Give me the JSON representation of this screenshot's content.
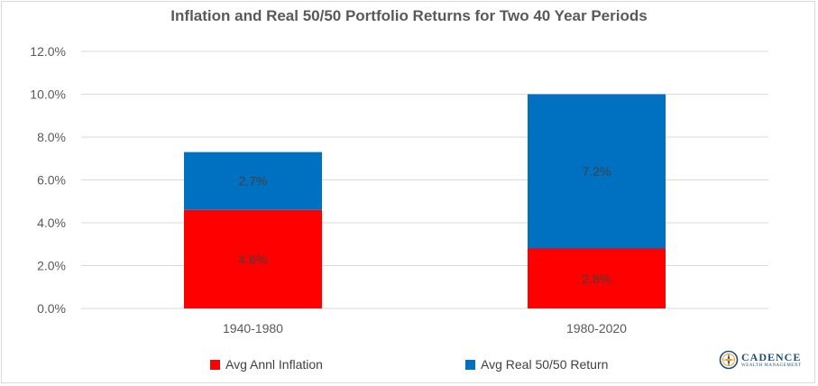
{
  "chart_data": {
    "type": "bar",
    "stacked": true,
    "title": "Inflation and Real 50/50 Portfolio Returns for Two 40 Year Periods",
    "categories": [
      "1940-1980",
      "1980-2020"
    ],
    "series": [
      {
        "name": "Avg Annl Inflation",
        "color": "#ff0000",
        "values": [
          4.6,
          2.8
        ],
        "labels": [
          "4.6%",
          "2.8%"
        ]
      },
      {
        "name": "Avg Real 50/50 Return",
        "color": "#0070c0",
        "values": [
          2.7,
          7.2
        ],
        "labels": [
          "2.7%",
          "7.2%"
        ]
      }
    ],
    "ylim": [
      0,
      12
    ],
    "yticks": [
      0,
      2,
      4,
      6,
      8,
      10,
      12
    ],
    "ytick_labels": [
      "0.0%",
      "2.0%",
      "4.0%",
      "6.0%",
      "8.0%",
      "10.0%",
      "12.0%"
    ],
    "grid": true,
    "legend_position": "bottom"
  },
  "logo": {
    "name": "CADENCE",
    "tagline": "WEALTH MANAGEMENT"
  }
}
